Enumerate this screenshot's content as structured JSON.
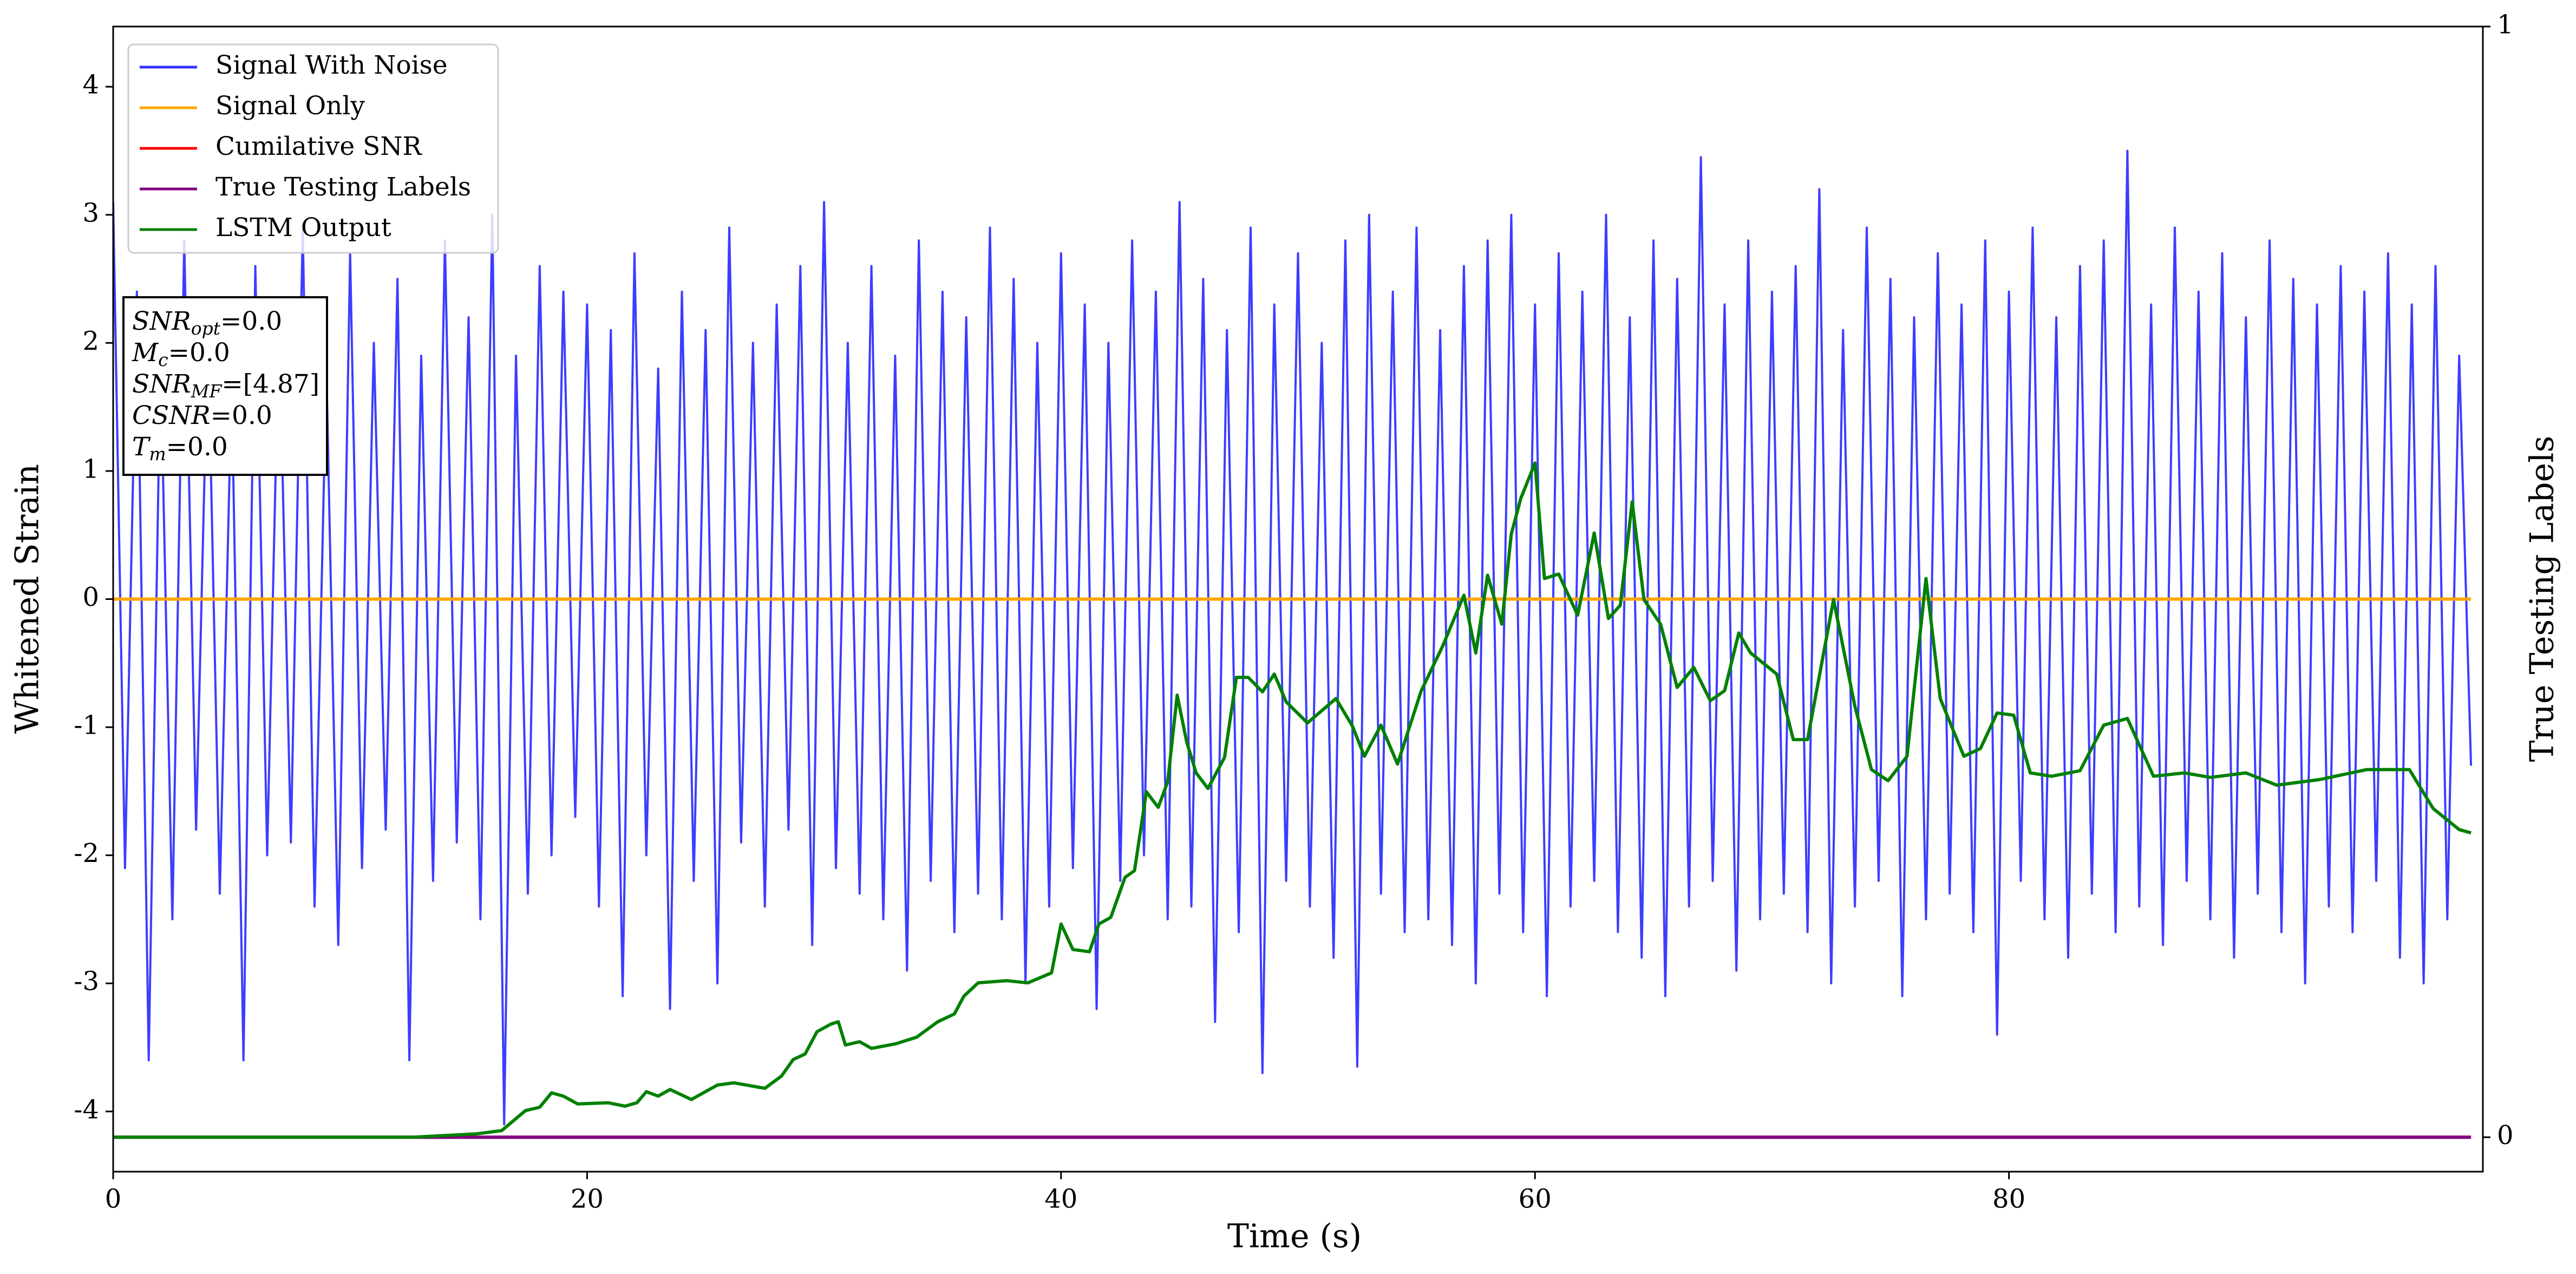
{
  "chart_data": {
    "type": "line",
    "xlabel": "Time (s)",
    "ylabel": "Whitened Strain",
    "y2label": "True Testing Labels",
    "xlim": [
      0,
      100
    ],
    "xticks": [
      0,
      20,
      40,
      60,
      80
    ],
    "ylim": [
      -4.47,
      4.47
    ],
    "yticks": [
      -4,
      -3,
      -2,
      -1,
      0,
      1,
      2,
      3,
      4
    ],
    "y2lim": [
      -0.031,
      1
    ],
    "y2ticks": [
      0,
      1
    ],
    "grid": false,
    "legend_position": "upper left",
    "annotation": [
      {
        "main": "SNR",
        "sub": "opt",
        "rest": "=0.0"
      },
      {
        "main": "M",
        "sub": "c",
        "rest": "=0.0"
      },
      {
        "main": "SNR",
        "sub": "MF",
        "rest": "=[4.87]"
      },
      {
        "main": "CSNR",
        "sub": null,
        "rest": "=0.0"
      },
      {
        "main": "T",
        "sub": "m",
        "rest": "=0.0"
      }
    ],
    "series": [
      {
        "name": "Signal With Noise",
        "color": "#3333ff",
        "x": [
          0,
          0.5,
          1,
          1.5,
          2,
          2.5,
          3,
          3.5,
          4,
          4.5,
          5,
          5.5,
          6,
          6.5,
          7,
          7.5,
          8,
          8.5,
          9,
          9.5,
          10,
          10.5,
          11,
          11.5,
          12,
          12.5,
          13,
          13.5,
          14,
          14.5,
          15,
          15.5,
          16,
          16.5,
          17,
          17.5,
          18,
          18.5,
          19,
          19.5,
          20,
          20.5,
          21,
          21.5,
          22,
          22.5,
          23,
          23.5,
          24,
          24.5,
          25,
          25.5,
          26,
          26.5,
          27,
          27.5,
          28,
          28.5,
          29,
          29.5,
          30,
          30.5,
          31,
          31.5,
          32,
          32.5,
          33,
          33.5,
          34,
          34.5,
          35,
          35.5,
          36,
          36.5,
          37,
          37.5,
          38,
          38.5,
          39,
          39.5,
          40,
          40.5,
          41,
          41.5,
          42,
          42.5,
          43,
          43.5,
          44,
          44.5,
          45,
          45.5,
          46,
          46.5,
          47,
          47.5,
          48,
          48.5,
          49,
          49.5,
          50,
          50.5,
          51,
          51.5,
          52,
          52.5,
          53,
          53.5,
          54,
          54.5,
          55,
          55.5,
          56,
          56.5,
          57,
          57.5,
          58,
          58.5,
          59,
          59.5,
          60,
          60.5,
          61,
          61.5,
          62,
          62.5,
          63,
          63.5,
          64,
          64.5,
          65,
          65.5,
          66,
          66.5,
          67,
          67.5,
          68,
          68.5,
          69,
          69.5,
          70,
          70.5,
          71,
          71.5,
          72,
          72.5,
          73,
          73.5,
          74,
          74.5,
          75,
          75.5,
          76,
          76.5,
          77,
          77.5,
          78,
          78.5,
          79,
          79.5,
          80,
          80.5,
          81,
          81.5,
          82,
          82.5,
          83,
          83.5,
          84,
          84.5,
          85,
          85.5,
          86,
          86.5,
          87,
          87.5,
          88,
          88.5,
          89,
          89.5,
          90,
          90.5,
          91,
          91.5,
          92,
          92.5,
          93,
          93.5,
          94,
          94.5,
          95,
          95.5,
          96,
          96.5,
          97,
          97.5,
          98,
          98.5,
          99,
          99.5
        ],
        "values": [
          3.1,
          -2.1,
          2.4,
          -3.6,
          1.9,
          -2.5,
          2.8,
          -1.8,
          2.1,
          -2.3,
          1.7,
          -3.6,
          2.6,
          -2.0,
          2.2,
          -1.9,
          2.9,
          -2.4,
          1.8,
          -2.7,
          2.7,
          -2.1,
          2.0,
          -1.8,
          2.5,
          -3.6,
          1.9,
          -2.2,
          2.8,
          -1.9,
          2.2,
          -2.5,
          3.0,
          -4.1,
          1.9,
          -2.3,
          2.6,
          -2.0,
          2.4,
          -1.7,
          2.3,
          -2.4,
          2.1,
          -3.1,
          2.7,
          -2.0,
          1.8,
          -3.2,
          2.4,
          -2.2,
          2.1,
          -3.0,
          2.9,
          -1.9,
          2.0,
          -2.4,
          2.3,
          -1.8,
          2.6,
          -2.7,
          3.1,
          -2.1,
          2.0,
          -2.3,
          2.6,
          -2.5,
          1.9,
          -2.9,
          2.8,
          -2.2,
          2.4,
          -2.6,
          2.2,
          -2.3,
          2.9,
          -2.5,
          2.5,
          -3.0,
          2.0,
          -2.4,
          2.7,
          -2.1,
          2.3,
          -3.2,
          2.0,
          -2.2,
          2.8,
          -2.0,
          2.4,
          -2.5,
          3.1,
          -2.4,
          2.5,
          -3.3,
          2.1,
          -2.6,
          2.9,
          -3.7,
          2.3,
          -2.2,
          2.7,
          -2.4,
          2.0,
          -2.8,
          2.8,
          -3.65,
          3.0,
          -2.3,
          2.4,
          -2.6,
          2.9,
          -2.5,
          2.1,
          -2.7,
          2.6,
          -3.0,
          2.8,
          -2.3,
          3.0,
          -2.6,
          2.3,
          -3.1,
          2.7,
          -2.4,
          2.4,
          -2.2,
          3.0,
          -2.6,
          2.2,
          -2.8,
          2.8,
          -3.1,
          2.5,
          -2.4,
          3.45,
          -2.2,
          2.3,
          -2.9,
          2.8,
          -2.5,
          2.4,
          -2.3,
          2.6,
          -2.6,
          3.2,
          -3.0,
          2.1,
          -2.4,
          2.9,
          -2.2,
          2.5,
          -3.1,
          2.2,
          -2.5,
          2.7,
          -2.3,
          2.3,
          -2.6,
          2.8,
          -3.4,
          2.4,
          -2.2,
          2.9,
          -2.5,
          2.2,
          -2.8,
          2.6,
          -2.3,
          2.8,
          -2.6,
          3.5,
          -2.4,
          2.3,
          -2.7,
          2.9,
          -2.2,
          2.4,
          -2.5,
          2.7,
          -2.8,
          2.2,
          -2.3,
          2.8,
          -2.6,
          2.5,
          -3.0,
          2.3,
          -2.4,
          2.6,
          -2.6,
          2.4,
          -2.2,
          2.7,
          -2.8,
          2.3,
          -3.0,
          2.6,
          -2.5,
          1.9,
          -1.3
        ]
      },
      {
        "name": "Signal Only",
        "color": "#ffa500",
        "x": [
          0,
          99.5
        ],
        "values": [
          0,
          0
        ]
      },
      {
        "name": "Cumilative SNR",
        "color": "#ff0000",
        "axis": "y2",
        "x": [
          0,
          99.5
        ],
        "values": [
          0,
          0
        ]
      },
      {
        "name": "True Testing Labels",
        "color": "#800080",
        "axis": "y2",
        "x": [
          0,
          99.5
        ],
        "values": [
          0,
          0
        ]
      },
      {
        "name": "LSTM Output",
        "color": "#008000",
        "axis": "y2",
        "x": [
          0,
          12.6,
          15.3,
          16.4,
          17.4,
          18,
          18.5,
          19,
          19.6,
          20.9,
          21.6,
          22.1,
          22.5,
          23,
          23.5,
          24.4,
          25.5,
          26.2,
          27.5,
          28.2,
          28.7,
          29.2,
          29.7,
          30.3,
          30.6,
          30.9,
          31.5,
          32,
          33,
          33.9,
          34.8,
          35.5,
          35.9,
          36.5,
          37.7,
          38.6,
          39.6,
          40,
          40.5,
          41.2,
          41.6,
          42.1,
          42.7,
          43.1,
          43.6,
          44.1,
          44.5,
          44.9,
          45.3,
          45.7,
          46.2,
          46.9,
          47.4,
          47.9,
          48.5,
          49,
          49.5,
          50.4,
          51.6,
          52.3,
          52.8,
          53.5,
          54.2,
          55.2,
          56.1,
          57,
          57.5,
          58,
          58.6,
          59,
          59.4,
          60,
          60.4,
          61,
          61.8,
          62.5,
          63.1,
          63.6,
          64.1,
          64.6,
          65.3,
          66,
          66.7,
          67.4,
          68,
          68.6,
          69.1,
          70.2,
          70.9,
          71.5,
          72.6,
          73.5,
          74.2,
          74.9,
          75.7,
          76.5,
          77.1,
          78.1,
          78.8,
          79.5,
          80.2,
          80.9,
          81.8,
          83,
          84,
          85,
          86.1,
          87.4,
          88.5,
          90,
          91.3,
          93.1,
          95.1,
          96.9,
          97.9,
          99,
          99.5
        ],
        "values": [
          0,
          0,
          0.003,
          0.006,
          0.024,
          0.027,
          0.04,
          0.037,
          0.03,
          0.031,
          0.028,
          0.031,
          0.041,
          0.037,
          0.043,
          0.034,
          0.047,
          0.049,
          0.044,
          0.055,
          0.07,
          0.075,
          0.095,
          0.102,
          0.104,
          0.083,
          0.086,
          0.08,
          0.084,
          0.09,
          0.104,
          0.111,
          0.127,
          0.139,
          0.141,
          0.139,
          0.148,
          0.192,
          0.169,
          0.167,
          0.192,
          0.198,
          0.234,
          0.24,
          0.311,
          0.297,
          0.32,
          0.398,
          0.356,
          0.328,
          0.314,
          0.342,
          0.414,
          0.414,
          0.401,
          0.417,
          0.392,
          0.373,
          0.395,
          0.37,
          0.343,
          0.371,
          0.336,
          0.402,
          0.442,
          0.488,
          0.436,
          0.506,
          0.462,
          0.543,
          0.575,
          0.607,
          0.503,
          0.507,
          0.47,
          0.544,
          0.467,
          0.479,
          0.572,
          0.484,
          0.462,
          0.405,
          0.423,
          0.393,
          0.402,
          0.454,
          0.436,
          0.417,
          0.358,
          0.358,
          0.484,
          0.388,
          0.331,
          0.321,
          0.343,
          0.503,
          0.395,
          0.343,
          0.35,
          0.382,
          0.38,
          0.328,
          0.325,
          0.33,
          0.371,
          0.377,
          0.325,
          0.328,
          0.324,
          0.328,
          0.317,
          0.322,
          0.331,
          0.331,
          0.296,
          0.277,
          0.274
        ]
      }
    ]
  }
}
